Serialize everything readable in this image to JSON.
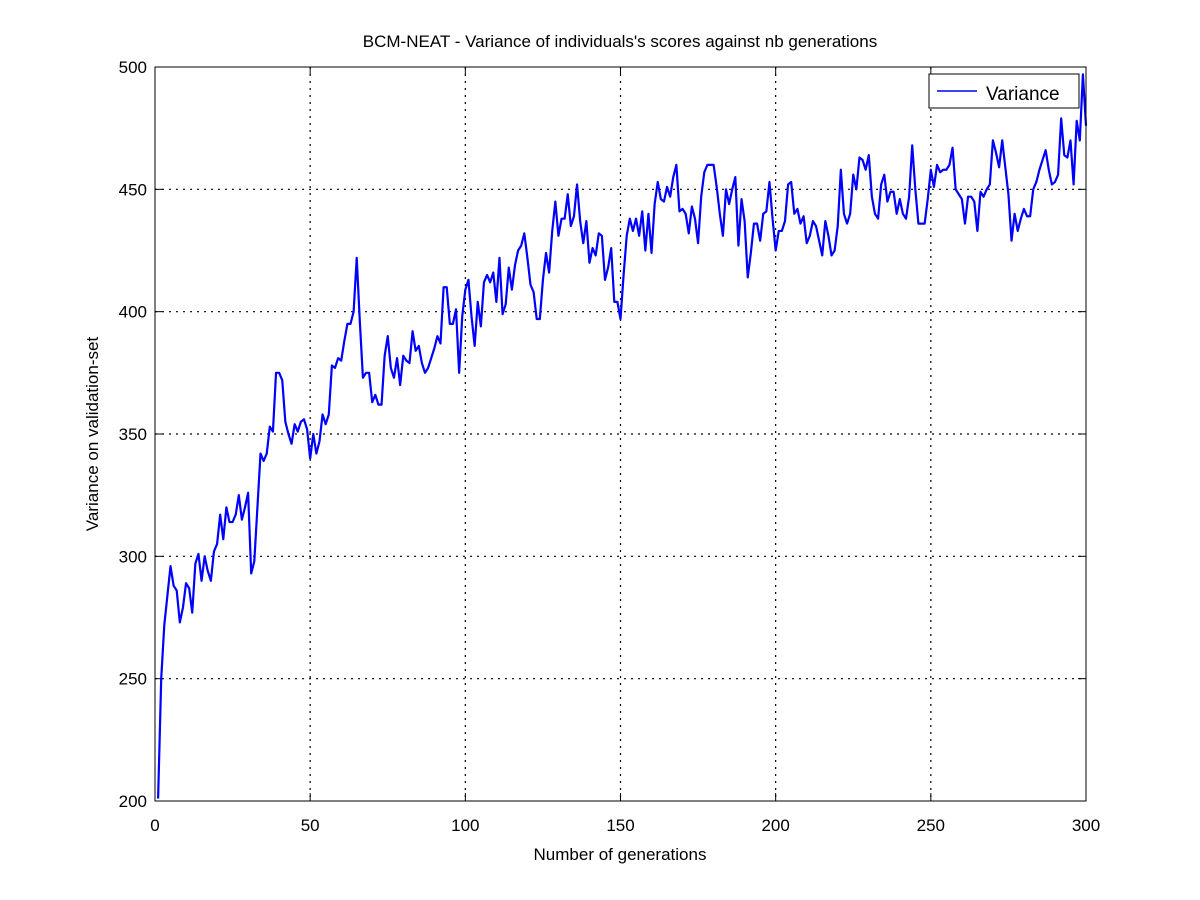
{
  "chart_data": {
    "type": "line",
    "title": "BCM-NEAT - Variance of individuals's scores against nb generations",
    "xlabel": "Number of generations",
    "ylabel": "Variance on validation-set",
    "xlim": [
      0,
      300
    ],
    "ylim": [
      200,
      500
    ],
    "xticks": [
      0,
      50,
      100,
      150,
      200,
      250,
      300
    ],
    "yticks": [
      200,
      250,
      300,
      350,
      400,
      450,
      500
    ],
    "grid": true,
    "legend_position": "top-right",
    "line_color": "#0000ff",
    "series": [
      {
        "name": "Variance",
        "x": [
          1,
          2,
          3,
          4,
          5,
          6,
          7,
          8,
          9,
          10,
          11,
          12,
          13,
          14,
          15,
          16,
          17,
          18,
          19,
          20,
          21,
          22,
          23,
          24,
          25,
          26,
          27,
          28,
          29,
          30,
          31,
          32,
          33,
          34,
          35,
          36,
          37,
          38,
          39,
          40,
          41,
          42,
          43,
          44,
          45,
          46,
          47,
          48,
          49,
          50,
          51,
          52,
          53,
          54,
          55,
          56,
          57,
          58,
          59,
          60,
          61,
          62,
          63,
          64,
          65,
          66,
          67,
          68,
          69,
          70,
          71,
          72,
          73,
          74,
          75,
          76,
          77,
          78,
          79,
          80,
          81,
          82,
          83,
          84,
          85,
          86,
          87,
          88,
          89,
          90,
          91,
          92,
          93,
          94,
          95,
          96,
          97,
          98,
          99,
          100,
          101,
          102,
          103,
          104,
          105,
          106,
          107,
          108,
          109,
          110,
          111,
          112,
          113,
          114,
          115,
          116,
          117,
          118,
          119,
          120,
          121,
          122,
          123,
          124,
          125,
          126,
          127,
          128,
          129,
          130,
          131,
          132,
          133,
          134,
          135,
          136,
          137,
          138,
          139,
          140,
          141,
          142,
          143,
          144,
          145,
          146,
          147,
          148,
          149,
          150,
          151,
          152,
          153,
          154,
          155,
          156,
          157,
          158,
          159,
          160,
          161,
          162,
          163,
          164,
          165,
          166,
          167,
          168,
          169,
          170,
          171,
          172,
          173,
          174,
          175,
          176,
          177,
          178,
          179,
          180,
          181,
          182,
          183,
          184,
          185,
          186,
          187,
          188,
          189,
          190,
          191,
          192,
          193,
          194,
          195,
          196,
          197,
          198,
          199,
          200,
          201,
          202,
          203,
          204,
          205,
          206,
          207,
          208,
          209,
          210,
          211,
          212,
          213,
          214,
          215,
          216,
          217,
          218,
          219,
          220,
          221,
          222,
          223,
          224,
          225,
          226,
          227,
          228,
          229,
          230,
          231,
          232,
          233,
          234,
          235,
          236,
          237,
          238,
          239,
          240,
          241,
          242,
          243,
          244,
          245,
          246,
          247,
          248,
          249,
          250,
          251,
          252,
          253,
          254,
          255,
          256,
          257,
          258,
          259,
          260,
          261,
          262,
          263,
          264,
          265,
          266,
          267,
          268,
          269,
          270,
          271,
          272,
          273,
          274,
          275,
          276,
          277,
          278,
          279,
          280,
          281,
          282,
          283,
          284,
          285,
          286,
          287,
          288,
          289,
          290,
          291,
          292,
          293,
          294,
          295,
          296,
          297,
          298,
          299,
          300
        ],
        "values": [
          201,
          250,
          272,
          284,
          296,
          288,
          286,
          273,
          279,
          289,
          287,
          277,
          297,
          301,
          290,
          300,
          294,
          290,
          302,
          305,
          317,
          307,
          320,
          314,
          314,
          317,
          325,
          315,
          320,
          326,
          293,
          298,
          320,
          342,
          339,
          342,
          353,
          351,
          375,
          375,
          372,
          355,
          350,
          346,
          354,
          351,
          355,
          356,
          352,
          340,
          350,
          342,
          347,
          358,
          354,
          358,
          378,
          377,
          381,
          380,
          388,
          395,
          395,
          400,
          422,
          396,
          373,
          375,
          375,
          363,
          366,
          362,
          362,
          382,
          390,
          377,
          373,
          381,
          370,
          382,
          380,
          379,
          392,
          384,
          386,
          379,
          375,
          377,
          381,
          385,
          390,
          387,
          410,
          410,
          395,
          395,
          401,
          375,
          398,
          409,
          413,
          398,
          386,
          404,
          394,
          412,
          415,
          412,
          416,
          404,
          422,
          399,
          403,
          418,
          409,
          419,
          425,
          427,
          432,
          422,
          411,
          408,
          397,
          397,
          413,
          424,
          416,
          433,
          445,
          431,
          438,
          438,
          448,
          435,
          439,
          452,
          437,
          428,
          437,
          420,
          426,
          423,
          432,
          431,
          413,
          418,
          426,
          404,
          404,
          397,
          415,
          431,
          438,
          433,
          438,
          431,
          441,
          425,
          440,
          424,
          444,
          453,
          446,
          445,
          451,
          447,
          455,
          460,
          441,
          442,
          440,
          432,
          443,
          438,
          428,
          447,
          457,
          460,
          460,
          460,
          451,
          440,
          431,
          450,
          444,
          450,
          455,
          427,
          446,
          437,
          414,
          424,
          436,
          436,
          429,
          440,
          441,
          453,
          438,
          425,
          433,
          433,
          437,
          452,
          453,
          440,
          442,
          436,
          439,
          428,
          431,
          437,
          435,
          429,
          423,
          437,
          431,
          423,
          425,
          435,
          458,
          440,
          436,
          440,
          456,
          450,
          463,
          462,
          458,
          464,
          447,
          440,
          438,
          452,
          456,
          445,
          449,
          449,
          440,
          446,
          440,
          438,
          447,
          468,
          450,
          436,
          436,
          436,
          446,
          458,
          451,
          460,
          457,
          458,
          458,
          460,
          467,
          450,
          448,
          446,
          436,
          447,
          447,
          445,
          433,
          449,
          447,
          450,
          452,
          470,
          465,
          459,
          470,
          459,
          448,
          429,
          440,
          433,
          438,
          442,
          439,
          439,
          450,
          453,
          458,
          462,
          466,
          458,
          452,
          453,
          456,
          479,
          464,
          463,
          470,
          452,
          478,
          470,
          497,
          476
        ]
      }
    ]
  }
}
